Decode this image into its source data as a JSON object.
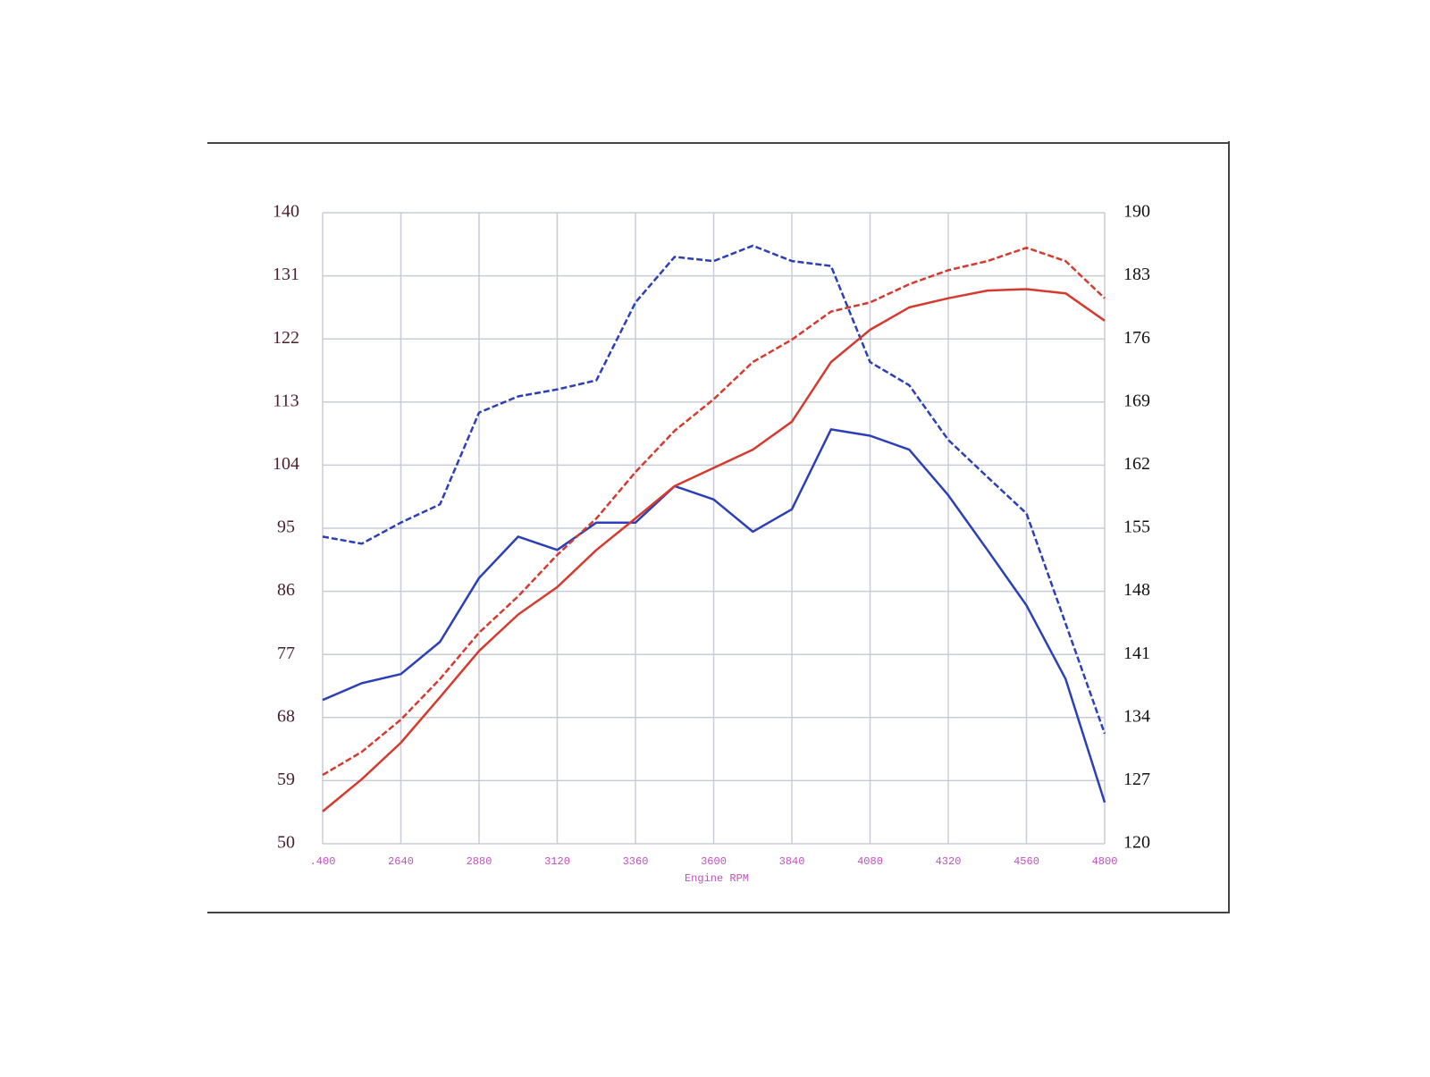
{
  "chart_data": {
    "type": "line",
    "x_label": "Engine RPM",
    "x": [
      2400,
      2520,
      2640,
      2760,
      2880,
      3000,
      3120,
      3240,
      3360,
      3480,
      3600,
      3720,
      3840,
      3960,
      4080,
      4200,
      4320,
      4440,
      4560,
      4680,
      4800
    ],
    "xlim": [
      2400,
      4800
    ],
    "xticks": [
      {
        "value": 2400,
        "label": ".400"
      },
      2640,
      2880,
      3120,
      3360,
      3600,
      3840,
      4080,
      4320,
      4560,
      4800
    ],
    "ylim": [
      50,
      140
    ],
    "yticks": [
      50,
      59,
      68,
      77,
      86,
      95,
      104,
      113,
      122,
      131,
      140
    ],
    "y2lim": [
      120,
      190
    ],
    "y2ticks": [
      120,
      127,
      134,
      141,
      148,
      155,
      162,
      169,
      176,
      183,
      190
    ],
    "grid": true,
    "series": [
      {
        "color": "#2b3fb8",
        "style": "dashed",
        "values": [
          93.8,
          92.8,
          95.8,
          98.4,
          111.5,
          113.8,
          114.8,
          116.1,
          127.2,
          133.7,
          133.1,
          135.3,
          133.1,
          132.4,
          118.7,
          115.4,
          107.6,
          102.3,
          97.1,
          81.4,
          65.7
        ]
      },
      {
        "color": "#2b3fb8",
        "style": "solid",
        "values": [
          70.5,
          72.9,
          74.2,
          78.8,
          87.9,
          93.8,
          91.9,
          95.8,
          95.8,
          101.0,
          99.1,
          94.5,
          97.7,
          109.1,
          108.2,
          106.2,
          99.7,
          91.9,
          84.0,
          73.5,
          55.9
        ]
      },
      {
        "color": "#d63a2e",
        "style": "dashed",
        "values": [
          59.8,
          63.1,
          67.7,
          73.5,
          80.1,
          85.3,
          91.2,
          96.4,
          103.0,
          108.9,
          113.4,
          118.7,
          121.9,
          125.9,
          127.2,
          129.8,
          131.8,
          133.1,
          135.0,
          133.1,
          127.8
        ]
      },
      {
        "color": "#d63a2e",
        "style": "solid",
        "values": [
          54.6,
          59.2,
          64.4,
          70.9,
          77.5,
          82.7,
          86.6,
          91.9,
          96.4,
          101.0,
          103.6,
          106.2,
          110.2,
          118.7,
          123.3,
          126.5,
          127.8,
          128.9,
          129.1,
          128.5,
          124.6
        ]
      }
    ]
  }
}
